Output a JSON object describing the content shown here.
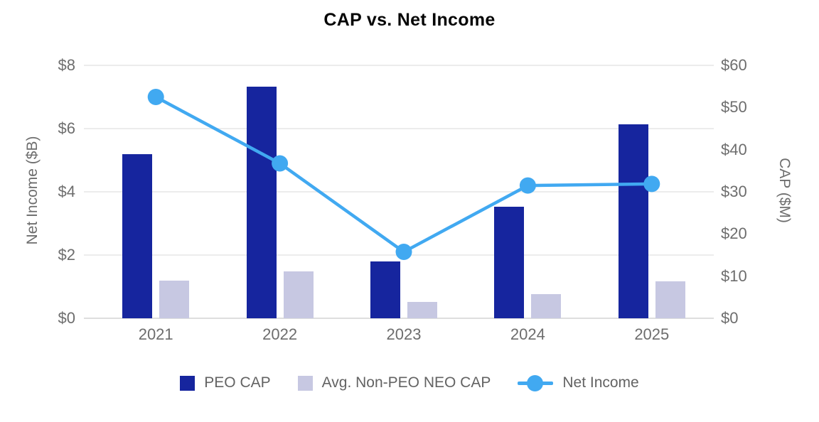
{
  "title": "CAP vs. Net Income",
  "colors": {
    "peo_cap": "#16259E",
    "non_peo_cap": "#C7C8E2",
    "net_income": "#41A9F1",
    "gridline": "#ECECEC",
    "axis_line": "#DEDEDE",
    "axis_text": "#6D6D6D",
    "title_text": "#050505"
  },
  "chart_data": {
    "type": "combo",
    "title": "CAP vs. Net Income",
    "categories": [
      "2021",
      "2022",
      "2023",
      "2024",
      "2025"
    ],
    "series": [
      {
        "name": "PEO CAP",
        "type": "bar",
        "axis": "right",
        "color": "#16259E",
        "values": [
          39,
          55,
          13.5,
          26.5,
          46
        ]
      },
      {
        "name": "Avg. Non-PEO NEO CAP",
        "type": "bar",
        "axis": "right",
        "color": "#C7C8E2",
        "values": [
          9,
          11.1,
          3.8,
          5.8,
          8.8
        ]
      },
      {
        "name": "Net Income",
        "type": "line",
        "axis": "left",
        "color": "#41A9F1",
        "values": [
          7.0,
          4.9,
          2.1,
          4.2,
          4.25
        ]
      }
    ],
    "left_axis": {
      "label": "Net Income ($B)",
      "min": 0,
      "max": 8,
      "tick_values": [
        0,
        2,
        4,
        6,
        8
      ],
      "tick_labels": [
        "$0",
        "$2",
        "$4",
        "$6",
        "$8"
      ]
    },
    "right_axis": {
      "label": "CAP ($M)",
      "min": 0,
      "max": 60,
      "tick_values": [
        0,
        10,
        20,
        30,
        40,
        50,
        60
      ],
      "tick_labels": [
        "$0",
        "$10",
        "$20",
        "$30",
        "$40",
        "$50",
        "$60"
      ]
    },
    "grid": "horizontal-only",
    "legend_position": "bottom"
  },
  "legend": {
    "items": [
      {
        "label": "PEO CAP",
        "swatch": "square"
      },
      {
        "label": "Avg. Non-PEO NEO CAP",
        "swatch": "square"
      },
      {
        "label": "Net Income",
        "swatch": "line-dot"
      }
    ]
  }
}
